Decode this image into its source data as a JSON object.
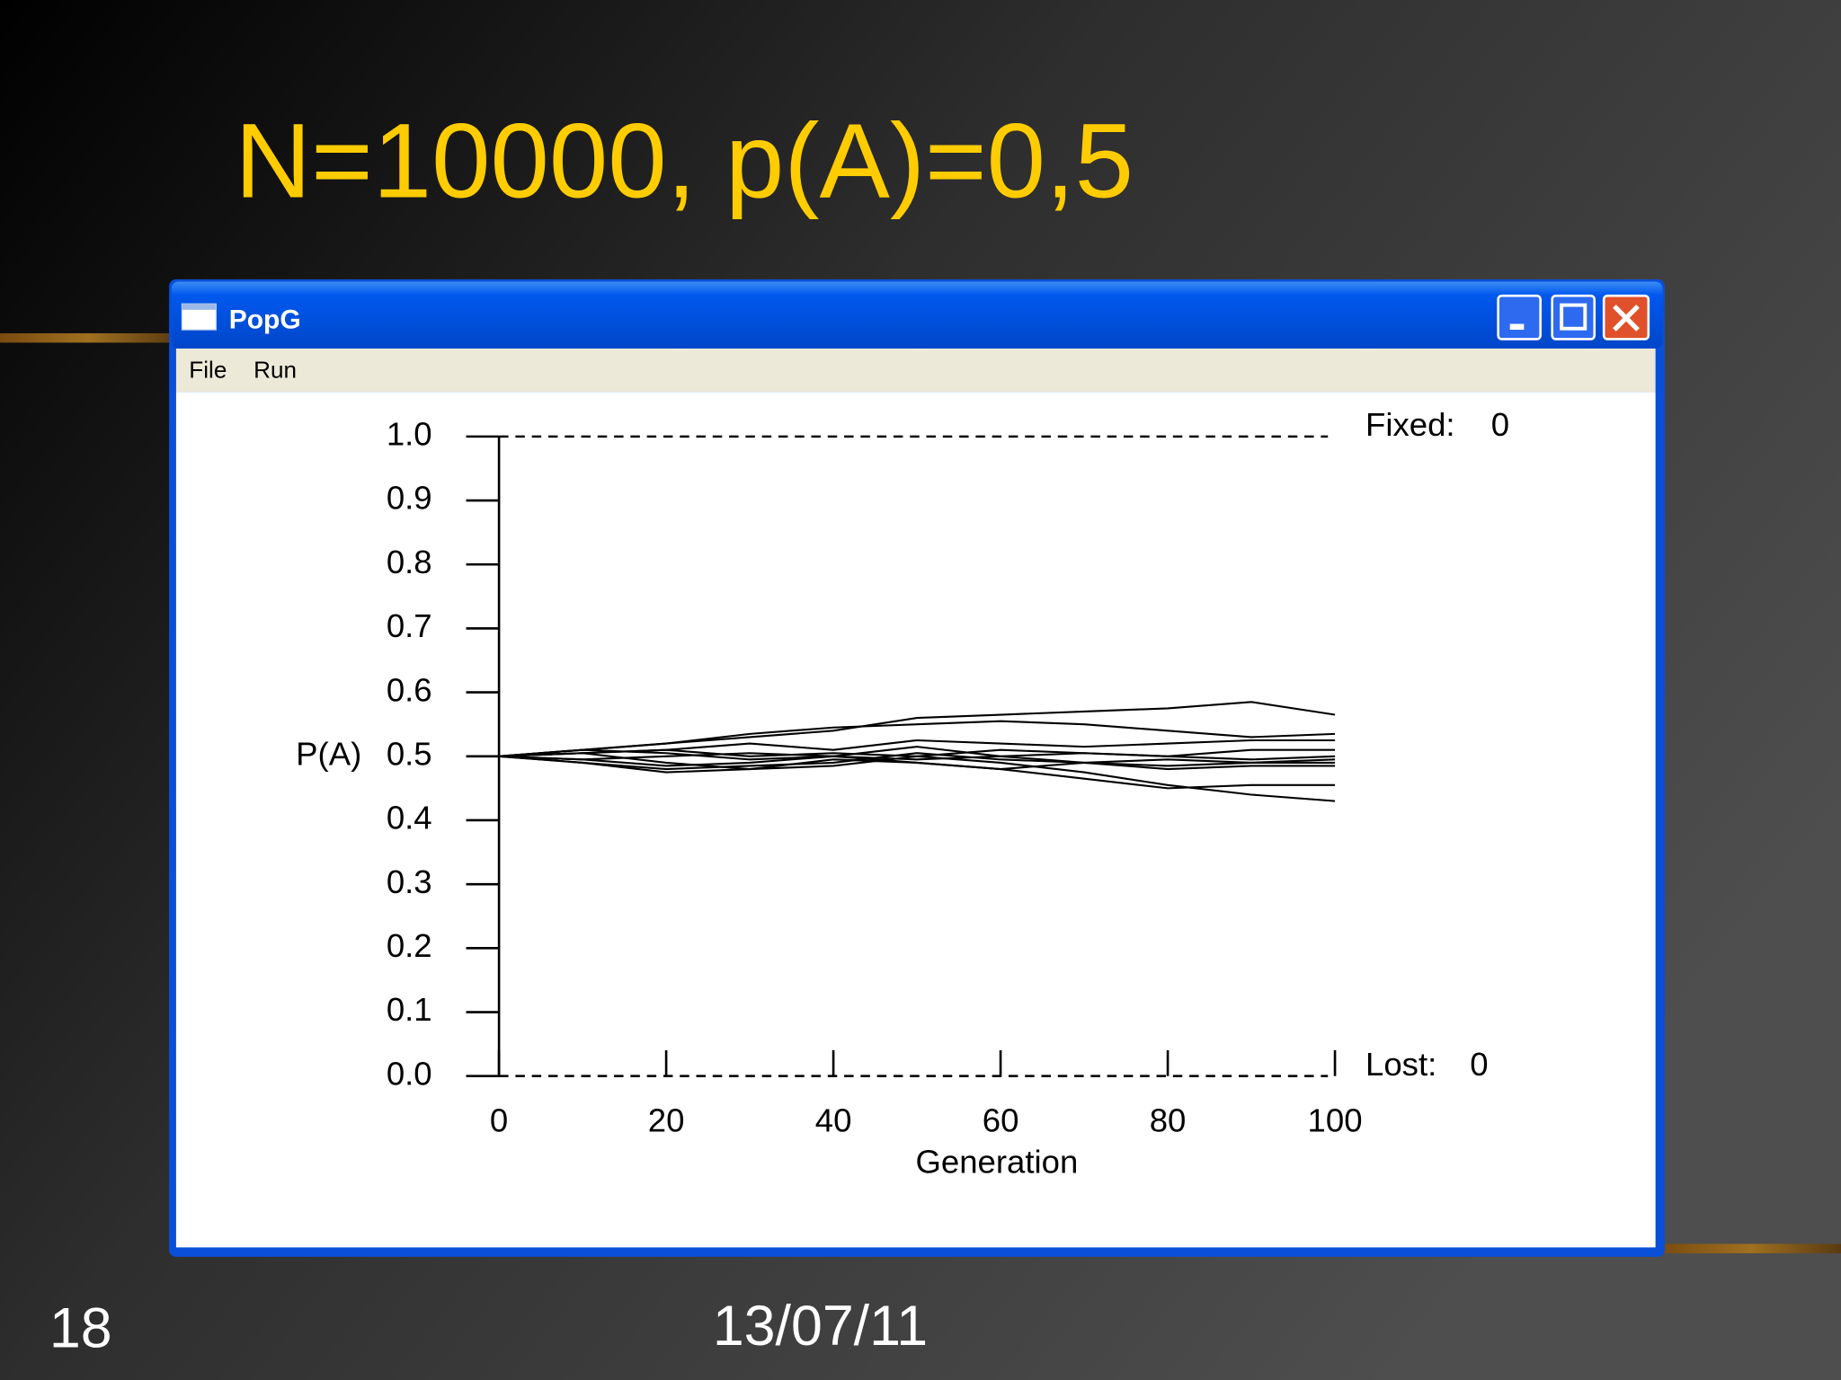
{
  "slide": {
    "title": "N=10000, p(A)=0,5",
    "number": "18",
    "date": "13/07/11"
  },
  "window": {
    "title": "PopG",
    "menu": [
      "File",
      "Run"
    ]
  },
  "chart_data": {
    "type": "line",
    "xlabel": "Generation",
    "ylabel": "P(A)",
    "x": [
      0,
      10,
      20,
      30,
      40,
      50,
      60,
      70,
      80,
      90,
      100
    ],
    "series": [
      {
        "color": "#000000",
        "values": [
          0.5,
          0.51,
          0.52,
          0.53,
          0.54,
          0.56,
          0.565,
          0.57,
          0.575,
          0.585,
          0.565
        ]
      },
      {
        "color": "#000000",
        "values": [
          0.5,
          0.51,
          0.52,
          0.535,
          0.545,
          0.55,
          0.555,
          0.55,
          0.54,
          0.53,
          0.535
        ]
      },
      {
        "color": "#000000",
        "values": [
          0.5,
          0.505,
          0.51,
          0.52,
          0.51,
          0.525,
          0.52,
          0.515,
          0.52,
          0.525,
          0.525
        ]
      },
      {
        "color": "#000000",
        "values": [
          0.5,
          0.505,
          0.49,
          0.48,
          0.485,
          0.5,
          0.51,
          0.505,
          0.5,
          0.51,
          0.51
        ]
      },
      {
        "color": "#000000",
        "values": [
          0.5,
          0.495,
          0.5,
          0.505,
          0.5,
          0.495,
          0.5,
          0.505,
          0.5,
          0.495,
          0.5
        ]
      },
      {
        "color": "#000000",
        "values": [
          0.5,
          0.49,
          0.48,
          0.485,
          0.49,
          0.505,
          0.495,
          0.49,
          0.495,
          0.49,
          0.495
        ]
      },
      {
        "color": "#000000",
        "values": [
          0.5,
          0.51,
          0.505,
          0.495,
          0.5,
          0.49,
          0.48,
          0.49,
          0.485,
          0.49,
          0.49
        ]
      },
      {
        "color": "#000000",
        "values": [
          0.5,
          0.495,
          0.485,
          0.49,
          0.5,
          0.515,
          0.5,
          0.49,
          0.48,
          0.485,
          0.485
        ]
      },
      {
        "color": "#000000",
        "values": [
          0.5,
          0.505,
          0.51,
          0.5,
          0.505,
          0.5,
          0.49,
          0.475,
          0.455,
          0.44,
          0.43
        ]
      },
      {
        "color": "#000000",
        "values": [
          0.5,
          0.49,
          0.475,
          0.48,
          0.495,
          0.49,
          0.48,
          0.465,
          0.45,
          0.455,
          0.455
        ]
      }
    ],
    "xlim": [
      0,
      100
    ],
    "xticks": [
      0,
      20,
      40,
      60,
      80,
      100
    ],
    "ylim": [
      0,
      1
    ],
    "yticks": [
      {
        "value": 0,
        "label": "0.0"
      },
      0.1,
      0.2,
      0.3,
      0.4,
      0.5,
      0.6,
      0.7,
      0.8,
      0.9,
      {
        "value": 1,
        "label": "1.0"
      }
    ],
    "annotations": [
      {
        "label": "Fixed:",
        "value": 0
      },
      {
        "label": "Lost:",
        "value": 0
      }
    ]
  }
}
